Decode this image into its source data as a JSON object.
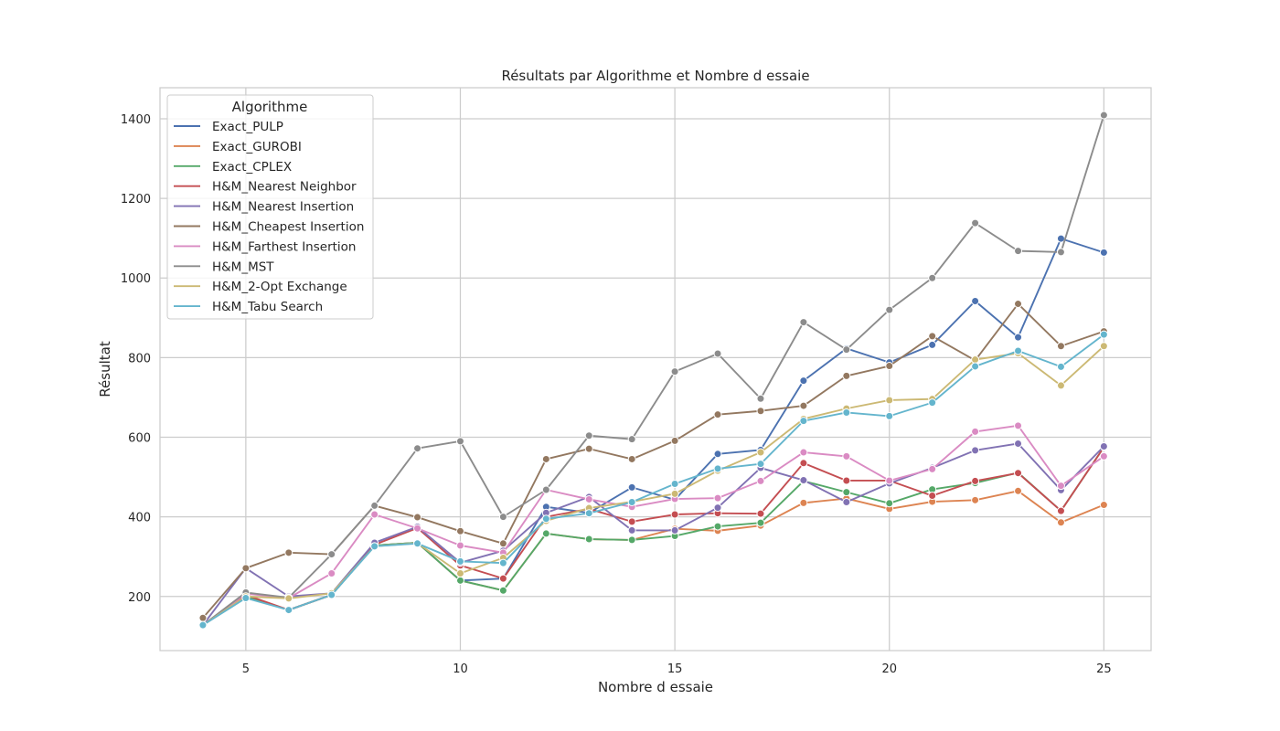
{
  "chart_data": {
    "type": "line",
    "title": "Résultats par Algorithme et Nombre d essaie",
    "xlabel": "Nombre d essaie",
    "ylabel": "Résultat",
    "xlim": [
      3,
      26.1
    ],
    "ylim": [
      64,
      1478
    ],
    "xticks": [
      5,
      10,
      15,
      20,
      25
    ],
    "yticks": [
      200,
      400,
      600,
      800,
      1000,
      1200,
      1400
    ],
    "grid": true,
    "legend": {
      "title": "Algorithme",
      "placement": "top-left"
    },
    "x": [
      4,
      5,
      6,
      7,
      8,
      9,
      10,
      11,
      12,
      13,
      14,
      15,
      16,
      17,
      18,
      19,
      20,
      21,
      22,
      23,
      24,
      25
    ],
    "series": [
      {
        "name": "Exact_PULP",
        "color": "#4c72b0",
        "values": [
          128,
          200,
          166,
          204,
          328,
          335,
          240,
          245,
          425,
          410,
          474,
          443,
          558,
          568,
          742,
          823,
          788,
          832,
          942,
          851,
          1099,
          1064
        ]
      },
      {
        "name": "Exact_GUROBI",
        "color": "#dd8452",
        "values": [
          128,
          200,
          166,
          204,
          328,
          335,
          240,
          215,
          358,
          344,
          342,
          370,
          365,
          378,
          435,
          446,
          420,
          438,
          442,
          465,
          386,
          430
        ]
      },
      {
        "name": "Exact_CPLEX",
        "color": "#55a868",
        "values": [
          128,
          200,
          166,
          204,
          328,
          335,
          240,
          215,
          358,
          344,
          342,
          352,
          376,
          385,
          490,
          462,
          434,
          469,
          485,
          511,
          415,
          575
        ]
      },
      {
        "name": "H&M_Nearest Neighbor",
        "color": "#c44e52",
        "values": [
          128,
          204,
          166,
          204,
          330,
          372,
          278,
          245,
          400,
          420,
          388,
          406,
          409,
          408,
          535,
          491,
          491,
          453,
          490,
          510,
          415,
          575
        ]
      },
      {
        "name": "H&M_Nearest Insertion",
        "color": "#8172b3",
        "values": [
          128,
          271,
          200,
          208,
          335,
          375,
          285,
          315,
          410,
          450,
          366,
          366,
          423,
          523,
          492,
          437,
          484,
          523,
          567,
          584,
          467,
          577
        ]
      },
      {
        "name": "H&M_Cheapest Insertion",
        "color": "#937860",
        "values": [
          146,
          271,
          310,
          306,
          428,
          399,
          364,
          333,
          545,
          571,
          545,
          591,
          657,
          666,
          679,
          754,
          779,
          854,
          793,
          935,
          829,
          866
        ]
      },
      {
        "name": "H&M_Farthest Insertion",
        "color": "#da8bc3",
        "values": [
          128,
          207,
          196,
          258,
          406,
          371,
          328,
          310,
          468,
          444,
          425,
          445,
          447,
          490,
          562,
          552,
          491,
          520,
          614,
          629,
          478,
          552
        ]
      },
      {
        "name": "H&M_MST",
        "color": "#8c8c8c",
        "values": [
          128,
          210,
          197,
          306,
          428,
          572,
          590,
          400,
          468,
          604,
          595,
          765,
          810,
          697,
          889,
          820,
          920,
          1000,
          1138,
          1068,
          1065,
          1409
        ]
      },
      {
        "name": "H&M_2-Opt Exchange",
        "color": "#ccb974",
        "values": [
          128,
          200,
          195,
          208,
          326,
          334,
          258,
          297,
          390,
          422,
          438,
          458,
          516,
          562,
          646,
          672,
          693,
          696,
          795,
          811,
          730,
          829
        ]
      },
      {
        "name": "H&M_Tabu Search",
        "color": "#64b5cd",
        "values": [
          128,
          196,
          166,
          204,
          326,
          333,
          288,
          284,
          395,
          409,
          437,
          483,
          521,
          533,
          641,
          662,
          653,
          687,
          778,
          817,
          777,
          858
        ]
      }
    ]
  }
}
